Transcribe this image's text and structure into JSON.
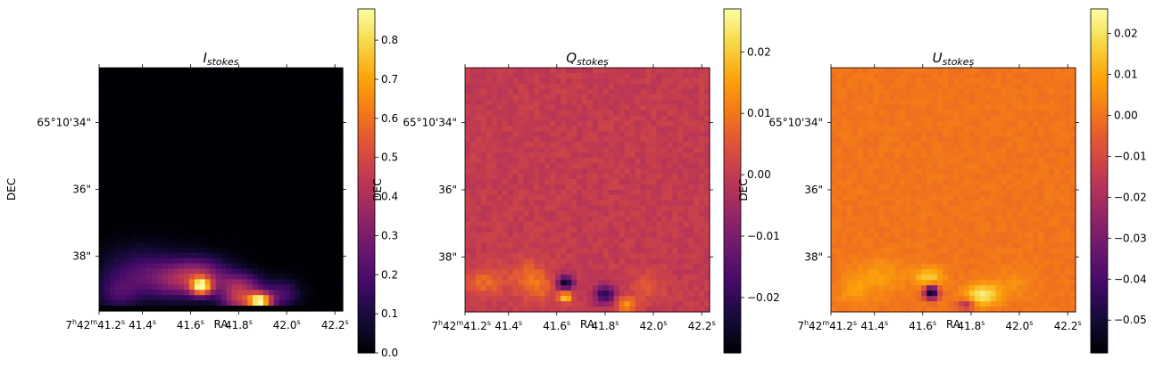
{
  "chart_data": [
    {
      "type": "heatmap",
      "title_main": "I",
      "title_sub": "stokes",
      "xlabel": "RA",
      "ylabel": "DEC",
      "colormap": "inferno",
      "xticks": [
        {
          "h": "7",
          "m": "42",
          "s": "41.2"
        },
        {
          "s": "41.4"
        },
        {
          "s": "41.6"
        },
        {
          "s": "41.8"
        },
        {
          "s": "42.0"
        },
        {
          "s": "42.2"
        }
      ],
      "yticks": [
        "65°10'34\"",
        "36\"",
        "38\""
      ],
      "colorbar": {
        "range": [
          0.0,
          0.88
        ],
        "ticks": [
          "0.0",
          "0.1",
          "0.2",
          "0.3",
          "0.4",
          "0.5",
          "0.6",
          "0.7",
          "0.8"
        ],
        "tick_values": [
          0,
          0.1,
          0.2,
          0.3,
          0.4,
          0.5,
          0.6,
          0.7,
          0.8
        ]
      },
      "field": {
        "background": 0.0,
        "noise": 0.004,
        "blobs": [
          {
            "x": 0.18,
            "y": 0.16,
            "sx": 0.12,
            "sy": 0.07,
            "v": 0.18
          },
          {
            "x": 0.32,
            "y": 0.12,
            "sx": 0.09,
            "sy": 0.05,
            "v": 0.22
          },
          {
            "x": 0.42,
            "y": 0.15,
            "sx": 0.08,
            "sy": 0.05,
            "v": 0.28
          },
          {
            "x": 0.42,
            "y": 0.1,
            "sx": 0.03,
            "sy": 0.025,
            "v": 0.65
          },
          {
            "x": 0.58,
            "y": 0.1,
            "sx": 0.06,
            "sy": 0.04,
            "v": 0.35
          },
          {
            "x": 0.57,
            "y": 0.04,
            "sx": 0.05,
            "sy": 0.03,
            "v": 0.3
          },
          {
            "x": 0.66,
            "y": 0.04,
            "sx": 0.035,
            "sy": 0.025,
            "v": 0.8
          },
          {
            "x": 0.75,
            "y": 0.07,
            "sx": 0.05,
            "sy": 0.04,
            "v": 0.2
          },
          {
            "x": 0.08,
            "y": 0.07,
            "sx": 0.06,
            "sy": 0.05,
            "v": 0.15
          }
        ],
        "bottom_cut": 0.03
      }
    },
    {
      "type": "heatmap",
      "title_main": "Q",
      "title_sub": "stokes",
      "xlabel": "RA",
      "ylabel": "DEC",
      "colormap": "inferno",
      "xticks": [
        {
          "h": "7",
          "m": "42",
          "s": "41.2"
        },
        {
          "s": "41.4"
        },
        {
          "s": "41.6"
        },
        {
          "s": "41.8"
        },
        {
          "s": "42.0"
        },
        {
          "s": "42.2"
        }
      ],
      "yticks": [
        "65°10'34\"",
        "36\"",
        "38\""
      ],
      "colorbar": {
        "range": [
          -0.029,
          0.027
        ],
        "ticks": [
          "0.02",
          "0.01",
          "0.00",
          "−0.01",
          "−0.02"
        ],
        "tick_values": [
          0.02,
          0.01,
          0.0,
          -0.01,
          -0.02
        ]
      },
      "field": {
        "background": 0.0,
        "noise": 0.0018,
        "blobs": [
          {
            "x": 0.08,
            "y": 0.12,
            "sx": 0.05,
            "sy": 0.04,
            "v": 0.008
          },
          {
            "x": 0.25,
            "y": 0.15,
            "sx": 0.06,
            "sy": 0.05,
            "v": 0.006
          },
          {
            "x": 0.41,
            "y": 0.12,
            "sx": 0.025,
            "sy": 0.02,
            "v": -0.026
          },
          {
            "x": 0.41,
            "y": 0.06,
            "sx": 0.02,
            "sy": 0.015,
            "v": 0.022
          },
          {
            "x": 0.57,
            "y": 0.07,
            "sx": 0.03,
            "sy": 0.025,
            "v": -0.022
          },
          {
            "x": 0.66,
            "y": 0.03,
            "sx": 0.03,
            "sy": 0.02,
            "v": 0.014
          },
          {
            "x": 0.3,
            "y": 0.1,
            "sx": 0.05,
            "sy": 0.04,
            "v": 0.007
          },
          {
            "x": 0.75,
            "y": 0.1,
            "sx": 0.05,
            "sy": 0.04,
            "v": 0.005
          }
        ],
        "bottom_cut": 0
      }
    },
    {
      "type": "heatmap",
      "title_main": "U",
      "title_sub": "stokes",
      "xlabel": "RA",
      "ylabel": "DEC",
      "colormap": "inferno",
      "xticks": [
        {
          "h": "7",
          "m": "42",
          "s": "41.2"
        },
        {
          "s": "41.4"
        },
        {
          "s": "41.6"
        },
        {
          "s": "41.8"
        },
        {
          "s": "42.0"
        },
        {
          "s": "42.2"
        }
      ],
      "yticks": [
        "65°10'34\"",
        "36\"",
        "38\""
      ],
      "colorbar": {
        "range": [
          -0.058,
          0.026
        ],
        "ticks": [
          "0.02",
          "0.01",
          "0.00",
          "−0.01",
          "−0.02",
          "−0.03",
          "−0.04",
          "−0.05"
        ],
        "tick_values": [
          0.02,
          0.01,
          0.0,
          -0.01,
          -0.02,
          -0.03,
          -0.04,
          -0.05
        ]
      },
      "field": {
        "background": 0.0,
        "noise": 0.0015,
        "blobs": [
          {
            "x": 0.4,
            "y": 0.14,
            "sx": 0.04,
            "sy": 0.03,
            "v": 0.016
          },
          {
            "x": 0.41,
            "y": 0.08,
            "sx": 0.02,
            "sy": 0.02,
            "v": -0.058
          },
          {
            "x": 0.62,
            "y": 0.07,
            "sx": 0.05,
            "sy": 0.03,
            "v": 0.022
          },
          {
            "x": 0.55,
            "y": 0.03,
            "sx": 0.025,
            "sy": 0.015,
            "v": -0.02
          },
          {
            "x": 0.2,
            "y": 0.15,
            "sx": 0.08,
            "sy": 0.05,
            "v": 0.007
          },
          {
            "x": 0.75,
            "y": 0.12,
            "sx": 0.06,
            "sy": 0.04,
            "v": 0.005
          },
          {
            "x": 0.1,
            "y": 0.08,
            "sx": 0.05,
            "sy": 0.04,
            "v": 0.006
          }
        ],
        "bottom_cut": 0
      }
    }
  ]
}
